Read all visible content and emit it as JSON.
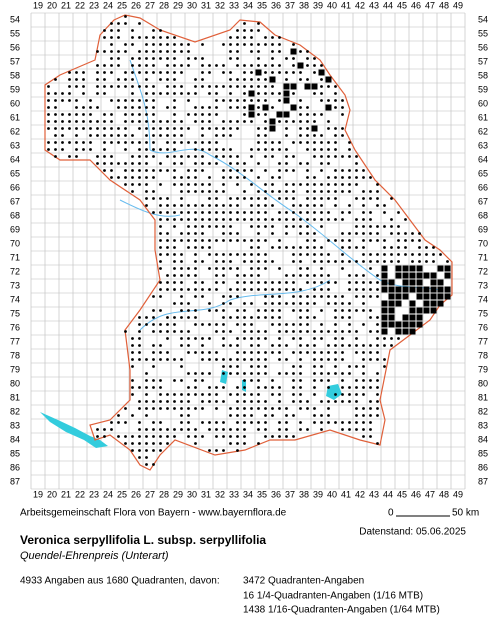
{
  "map": {
    "columns": [
      19,
      20,
      21,
      22,
      23,
      24,
      25,
      26,
      27,
      28,
      29,
      30,
      31,
      32,
      33,
      34,
      35,
      36,
      37,
      38,
      39,
      40,
      41,
      42,
      43,
      44,
      45,
      46,
      47,
      48,
      49
    ],
    "rows": [
      54,
      55,
      56,
      57,
      58,
      59,
      60,
      61,
      62,
      63,
      64,
      65,
      66,
      67,
      68,
      69,
      70,
      71,
      72,
      73,
      74,
      75,
      76,
      77,
      78,
      79,
      80,
      81,
      82,
      83,
      84,
      85,
      86,
      87
    ],
    "scale": {
      "start": "0",
      "end": "50 km"
    }
  },
  "footer": {
    "credit": "Arbeitsgemeinschaft Flora von Bayern - www.bayernflora.de",
    "date": "Datenstand: 05.06.2025",
    "title": "Veronica serpyllifolia L. subsp. serpyllifolia",
    "subtitle": "Quendel-Ehrenpreis (Unterart)",
    "summary": "4933 Angaben aus 1680 Quadranten, davon:",
    "counts": [
      "3472 Quadranten-Angaben",
      "16 1/4-Quadranten-Angaben (1/16 MTB)",
      "1438 1/16-Quadranten-Angaben (1/64 MTB)"
    ]
  }
}
